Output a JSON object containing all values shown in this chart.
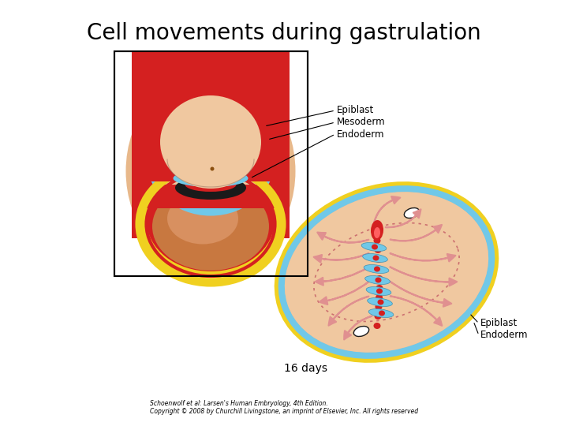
{
  "title": "Cell movements during gastrulation",
  "title_fontsize": 20,
  "background_color": "#ffffff",
  "citation_line1": "Schoenwolf et al: Larsen's Human Embryology, 4th Edition.",
  "citation_line2": "Copyright © 2008 by Churchill Livingstone, an imprint of Elsevier, Inc. All rights reserved",
  "label_epiblast_top": "Epiblast",
  "label_mesoderm": "Mesoderm",
  "label_endoderm_top": "Endoderm",
  "label_epiblast_bot": "Epiblast",
  "label_endoderm_bot": "Endoderm",
  "label_days": "16 days",
  "skin_color": "#E8B88A",
  "skin_light": "#F0C8A0",
  "skin_dark": "#C89060",
  "red_color": "#D42020",
  "blue_color": "#70C8E8",
  "yellow_color": "#F0D020",
  "arrow_pink": "#E09090",
  "black_color": "#1a1a1a"
}
